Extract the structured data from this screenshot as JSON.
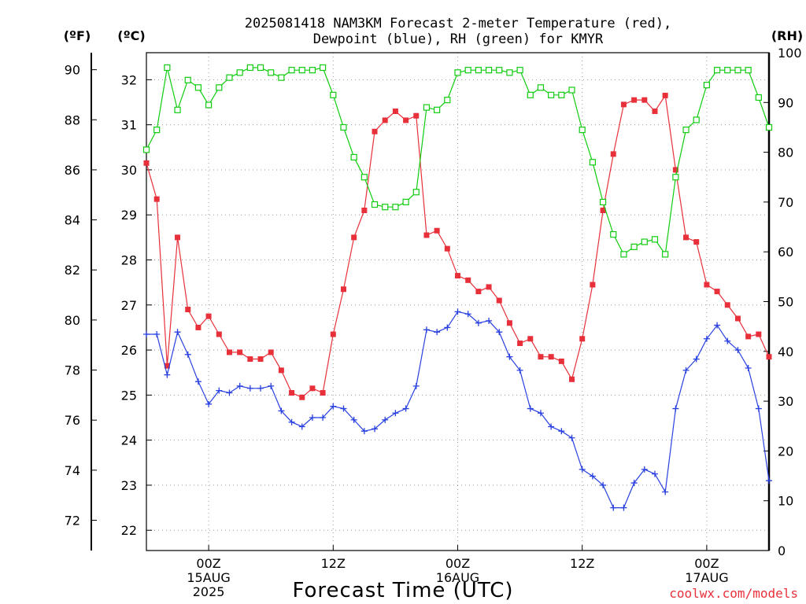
{
  "chart_data": {
    "type": "line",
    "title_lines": [
      "2025081418 NAM3KM Forecast 2-meter Temperature (red),",
      "Dewpoint (blue), RH (green) for KMYR"
    ],
    "xlabel": "Forecast Time (UTC)",
    "credit": "coolwx.com/models",
    "unit_labels": {
      "fahrenheit": "(ºF)",
      "celsius": "(ºC)",
      "rh": "(RH)"
    },
    "colors": {
      "temperature": "#e8303a",
      "dewpoint": "#2840e0",
      "rh": "#10cc10"
    },
    "x_ticks": [
      {
        "hour": 6,
        "lines": [
          "00Z",
          "15AUG",
          "2025"
        ]
      },
      {
        "hour": 18,
        "lines": [
          "12Z"
        ]
      },
      {
        "hour": 30,
        "lines": [
          "00Z",
          "16AUG"
        ]
      },
      {
        "hour": 42,
        "lines": [
          "12Z"
        ]
      },
      {
        "hour": 54,
        "lines": [
          "00Z",
          "17AUG"
        ]
      }
    ],
    "xlim": [
      0,
      60
    ],
    "y_fahrenheit_ticks": [
      72,
      74,
      76,
      78,
      80,
      82,
      84,
      86,
      88,
      90
    ],
    "y_celsius_ticks": [
      22,
      23,
      24,
      25,
      26,
      27,
      28,
      29,
      30,
      31,
      32
    ],
    "ylim_celsius": [
      21.55,
      32.6
    ],
    "y_rh_ticks": [
      0,
      10,
      20,
      30,
      40,
      50,
      60,
      70,
      80,
      90,
      100
    ],
    "ylim_rh": [
      0,
      100
    ],
    "grid": true,
    "series": [
      {
        "name": "Temperature",
        "key": "temperature",
        "unit": "°C",
        "marker": "filled-square",
        "x": [
          0,
          1,
          2,
          3,
          4,
          5,
          6,
          7,
          8,
          9,
          10,
          11,
          12,
          13,
          14,
          15,
          16,
          17,
          18,
          19,
          20,
          21,
          22,
          23,
          24,
          25,
          26,
          27,
          28,
          29,
          30,
          31,
          32,
          33,
          34,
          35,
          36,
          37,
          38,
          39,
          40,
          41,
          42,
          43,
          44,
          45,
          46,
          47,
          48,
          49,
          50,
          51,
          52,
          53,
          54,
          55,
          56,
          57,
          58,
          59,
          60
        ],
        "values": [
          30.15,
          29.35,
          25.65,
          28.5,
          26.9,
          26.5,
          26.75,
          26.35,
          25.95,
          25.95,
          25.8,
          25.8,
          25.95,
          25.55,
          25.05,
          24.95,
          25.15,
          25.05,
          26.35,
          27.35,
          28.5,
          29.1,
          30.85,
          31.1,
          31.3,
          31.1,
          31.2,
          28.55,
          28.65,
          28.25,
          27.65,
          27.55,
          27.3,
          27.4,
          27.1,
          26.6,
          26.15,
          26.25,
          25.85,
          25.85,
          25.75,
          25.35,
          26.25,
          27.45,
          29.1,
          30.35,
          31.45,
          31.55,
          31.55,
          31.3,
          31.65,
          30.0,
          28.5,
          28.4,
          27.45,
          27.3,
          27.0,
          26.7,
          26.3,
          26.35,
          25.85
        ]
      },
      {
        "name": "Dewpoint",
        "key": "dewpoint",
        "unit": "°C",
        "marker": "plus",
        "x": [
          0,
          1,
          2,
          3,
          4,
          5,
          6,
          7,
          8,
          9,
          10,
          11,
          12,
          13,
          14,
          15,
          16,
          17,
          18,
          19,
          20,
          21,
          22,
          23,
          24,
          25,
          26,
          27,
          28,
          29,
          30,
          31,
          32,
          33,
          34,
          35,
          36,
          37,
          38,
          39,
          40,
          41,
          42,
          43,
          44,
          45,
          46,
          47,
          48,
          49,
          50,
          51,
          52,
          53,
          54,
          55,
          56,
          57,
          58,
          59,
          60
        ],
        "values": [
          26.35,
          26.35,
          25.45,
          26.4,
          25.9,
          25.3,
          24.8,
          25.1,
          25.05,
          25.2,
          25.15,
          25.15,
          25.2,
          24.65,
          24.4,
          24.3,
          24.5,
          24.5,
          24.75,
          24.7,
          24.45,
          24.2,
          24.25,
          24.45,
          24.6,
          24.7,
          25.2,
          26.45,
          26.4,
          26.5,
          26.85,
          26.8,
          26.6,
          26.65,
          26.4,
          25.85,
          25.55,
          24.7,
          24.6,
          24.3,
          24.2,
          24.05,
          23.35,
          23.2,
          23.0,
          22.5,
          22.5,
          23.05,
          23.35,
          23.25,
          22.85,
          24.7,
          25.55,
          25.8,
          26.25,
          26.55,
          26.2,
          26.0,
          25.6,
          24.7,
          23.1
        ]
      },
      {
        "name": "RH",
        "key": "rh",
        "unit": "%",
        "marker": "open-square",
        "x": [
          0,
          1,
          2,
          3,
          4,
          5,
          6,
          7,
          8,
          9,
          10,
          11,
          12,
          13,
          14,
          15,
          16,
          17,
          18,
          19,
          20,
          21,
          22,
          23,
          24,
          25,
          26,
          27,
          28,
          29,
          30,
          31,
          32,
          33,
          34,
          35,
          36,
          37,
          38,
          39,
          40,
          41,
          42,
          43,
          44,
          45,
          46,
          47,
          48,
          49,
          50,
          51,
          52,
          53,
          54,
          55,
          56,
          57,
          58,
          59,
          60
        ],
        "values": [
          80.5,
          84.5,
          97,
          88.5,
          94.5,
          93,
          89.5,
          93,
          95,
          96,
          97,
          97,
          96,
          95,
          96.5,
          96.5,
          96.5,
          97,
          91.5,
          85,
          79,
          75,
          69.5,
          69,
          69,
          70,
          72,
          89,
          88.5,
          90.5,
          96,
          96.5,
          96.5,
          96.5,
          96.5,
          96,
          96.5,
          91.5,
          93,
          91.5,
          91.5,
          92.5,
          84.5,
          78,
          70,
          63.5,
          59.5,
          61,
          62,
          62.5,
          59.5,
          75,
          84.5,
          86.5,
          93.5,
          96.5,
          96.5,
          96.5,
          96.5,
          91,
          85
        ]
      }
    ]
  }
}
